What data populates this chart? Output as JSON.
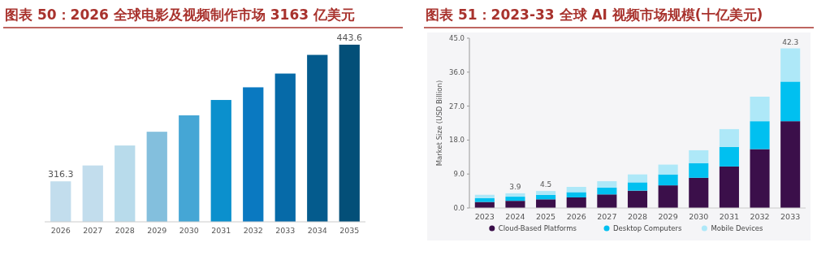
{
  "chart_data": [
    {
      "type": "bar",
      "title": "图表 50：2026 全球电影及视频制作市场 3163 亿美元",
      "categories": [
        "2026",
        "2027",
        "2028",
        "2029",
        "2030",
        "2031",
        "2032",
        "2033",
        "2034",
        "2035"
      ],
      "values": [
        316.3,
        331.1,
        349.7,
        362.5,
        377.8,
        392.1,
        403.9,
        416.7,
        434.1,
        443.6
      ],
      "colors": [
        "#c2dded",
        "#c2dded",
        "#b8dbeb",
        "#83bfdd",
        "#45a6d5",
        "#0b90cd",
        "#0a79c1",
        "#066aa8",
        "#045b8d",
        "#034f78"
      ],
      "value_labels": [
        "316.3",
        null,
        null,
        null,
        null,
        null,
        null,
        null,
        null,
        "443.6"
      ],
      "ylim": [
        278.6,
        443.6
      ],
      "tick_labels": "x"
    },
    {
      "type": "bar",
      "title": "图表 51：2023-33 全球 AI 视频市场规模(十亿美元)",
      "stacked": true,
      "categories": [
        "2023",
        "2024",
        "2025",
        "2026",
        "2027",
        "2028",
        "2029",
        "2030",
        "2031",
        "2032",
        "2033"
      ],
      "series": [
        {
          "name": "Cloud-Based Platforms",
          "color": "#3b0f4a",
          "values": [
            1.6,
            1.9,
            2.3,
            2.8,
            3.6,
            4.6,
            6.0,
            8.0,
            11.0,
            15.6,
            23.0
          ]
        },
        {
          "name": "Desktop Computers",
          "color": "#00c0f0",
          "values": [
            1.0,
            1.1,
            1.2,
            1.4,
            1.8,
            2.2,
            2.9,
            3.9,
            5.2,
            7.4,
            10.5
          ]
        },
        {
          "name": "Mobile Devices",
          "color": "#aee8f8",
          "values": [
            0.9,
            0.9,
            1.0,
            1.4,
            1.7,
            2.1,
            2.6,
            3.4,
            4.7,
            6.5,
            8.8
          ]
        }
      ],
      "totals": [
        null,
        "3.9",
        "4.5",
        null,
        null,
        null,
        null,
        null,
        null,
        null,
        "42.3"
      ],
      "ylabel": "Market Size (USD Billion)",
      "ylim": [
        0,
        45
      ],
      "yticks": [
        {
          "value": 0,
          "label": "0.0"
        },
        {
          "value": 9,
          "label": "9.0"
        },
        {
          "value": 18,
          "label": "18.0"
        },
        {
          "value": 27,
          "label": "27.0"
        },
        {
          "value": 36,
          "label": "36.0"
        },
        {
          "value": 45,
          "label": "45.0"
        }
      ],
      "legend": "bottom"
    }
  ]
}
